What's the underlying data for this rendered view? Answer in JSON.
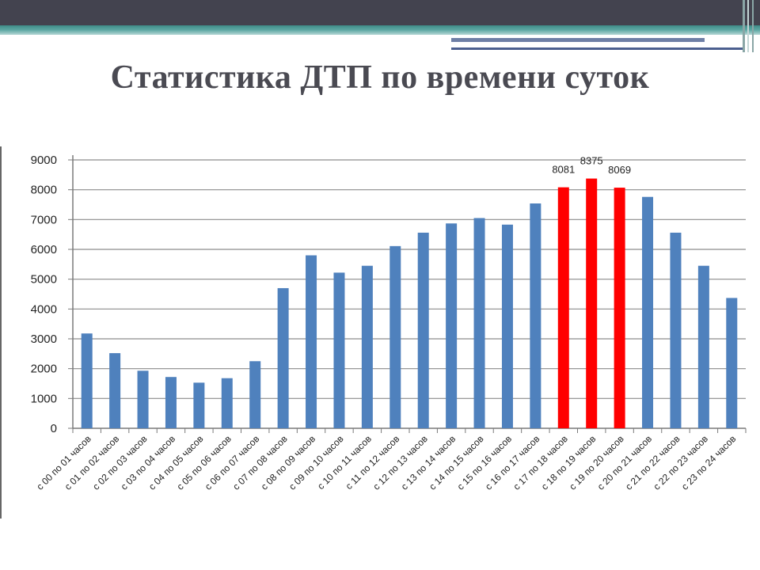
{
  "slide": {
    "title": "Статистика ДТП по времени суток"
  },
  "colors": {
    "bar_default": "#4f81bd",
    "bar_highlight": "#ff0000",
    "grid": "#8c8c8c",
    "header_dark": "#43434f",
    "header_teal": "#3d8a86"
  },
  "chart_data": {
    "type": "bar",
    "title": "",
    "xlabel": "",
    "ylabel": "",
    "ylim": [
      0,
      9000
    ],
    "yticks": [
      0,
      1000,
      2000,
      3000,
      4000,
      5000,
      6000,
      7000,
      8000,
      9000
    ],
    "grid": true,
    "categories": [
      "с 00 по 01 часов",
      "с 01 по 02 часов",
      "с 02 по 03 часов",
      "с 03 по 04 часов",
      "с 04 по 05 часов",
      "с 05 по 06 часов",
      "с 06 по 07 часов",
      "с 07 по 08 часов",
      "с 08 по 09 часов",
      "с 09 по 10 часов",
      "с 10 по 11 часов",
      "с 11 по 12 часов",
      "с 12 по 13 часов",
      "с 13 по 14 часов",
      "с 14 по 15 часов",
      "с 15 по 16 часов",
      "с 16 по 17 часов",
      "с 17 по 18 часов",
      "с 18 по 19 часов",
      "с 19 по 20 часов",
      "с 20 по 21 часов",
      "с 21 по 22 часов",
      "с 22 по 23 часов",
      "с 23 по 24 часов"
    ],
    "values": [
      3180,
      2520,
      1930,
      1720,
      1530,
      1680,
      2250,
      4700,
      5800,
      5220,
      5450,
      6110,
      6560,
      6870,
      7050,
      6830,
      7540,
      8081,
      8375,
      8069,
      7760,
      6560,
      5450,
      4370
    ],
    "highlighted": [
      false,
      false,
      false,
      false,
      false,
      false,
      false,
      false,
      false,
      false,
      false,
      false,
      false,
      false,
      false,
      false,
      false,
      true,
      true,
      true,
      false,
      false,
      false,
      false
    ],
    "data_labels": [
      "",
      "",
      "",
      "",
      "",
      "",
      "",
      "",
      "",
      "",
      "",
      "",
      "",
      "",
      "",
      "",
      "",
      "8081",
      "8375",
      "8069",
      "",
      "",
      "",
      ""
    ]
  }
}
